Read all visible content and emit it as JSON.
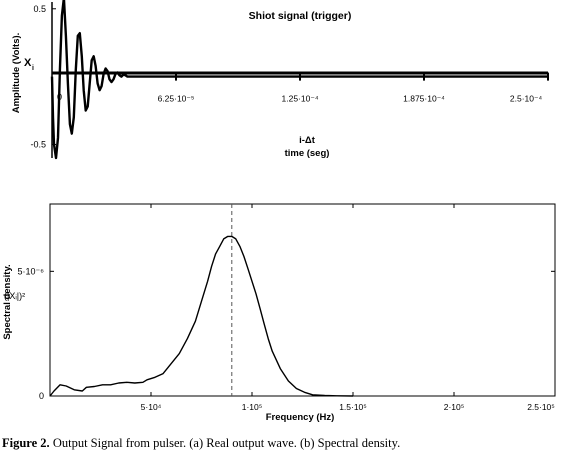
{
  "chart_data": [
    {
      "type": "line",
      "title": "Shiot signal (trigger)",
      "ylabel": "Amplitude (Volts).",
      "xlabel_top": "i-Δt",
      "xlabel": "time (seg)",
      "point_label": "X",
      "point_label_sub": "i",
      "origin_label": "0",
      "xlim": [
        0,
        0.00025
      ],
      "ylim": [
        -0.6,
        0.55
      ],
      "y_ticks": [
        {
          "value": 0.5,
          "label": "0.5"
        },
        {
          "value": -0.5,
          "label": "-0.5"
        }
      ],
      "x_ticks": [
        {
          "value": 6.25e-05,
          "label": "6.25·10⁻⁵"
        },
        {
          "value": 0.000125,
          "label": "1.25·10⁻⁴"
        },
        {
          "value": 0.0001875,
          "label": "1.875·10⁻⁴"
        },
        {
          "value": 0.00025,
          "label": "2.5·10⁻⁴"
        }
      ],
      "series": [
        {
          "x": [
            0,
            5e-07,
            1e-06,
            2e-06,
            3e-06,
            4e-06,
            5e-06,
            6e-06,
            7e-06,
            8e-06,
            9e-06,
            1e-05,
            1.1e-05,
            1.2e-05,
            1.3e-05,
            1.4e-05,
            1.5e-05,
            1.6e-05,
            1.7e-05,
            1.8e-05,
            1.9e-05,
            2e-05,
            2.1e-05,
            2.2e-05,
            2.3e-05,
            2.4e-05,
            2.5e-05,
            2.6e-05,
            2.7e-05,
            2.8e-05,
            2.9e-05,
            3e-05,
            3.1e-05,
            3.2e-05,
            3.3e-05,
            3.4e-05,
            3.5e-05,
            3.6e-05,
            3.7e-05,
            3.8e-05,
            4e-05,
            4.2e-05,
            4.4e-05,
            4.6e-05,
            5e-05,
            0.00025
          ],
          "y": [
            0,
            -0.3,
            -0.5,
            -0.6,
            -0.45,
            0.05,
            0.45,
            0.58,
            0.3,
            -0.05,
            -0.35,
            -0.42,
            -0.3,
            0.05,
            0.3,
            0.32,
            0.15,
            -0.1,
            -0.25,
            -0.22,
            -0.05,
            0.12,
            0.15,
            0.08,
            -0.05,
            -0.1,
            -0.07,
            0.02,
            0.06,
            0.04,
            -0.02,
            -0.04,
            -0.02,
            0.02,
            0.03,
            0.01,
            0,
            0.015,
            0.01,
            0,
            0,
            0,
            0,
            0,
            0,
            0
          ]
        }
      ]
    },
    {
      "type": "line",
      "ylabel": "Spectral density.",
      "ylabel_sub": "(|Xᵢ|)²",
      "xlabel": "Frequency (Hz)",
      "xlim": [
        0,
        250000
      ],
      "ylim": [
        0,
        7.7e-06
      ],
      "vline_x": 90000,
      "y_ticks": [
        {
          "value": 0,
          "label": "0"
        },
        {
          "value": 5e-06,
          "label": "5·10⁻⁶"
        }
      ],
      "x_ticks": [
        {
          "value": 50000,
          "label": "5·10⁴"
        },
        {
          "value": 100000,
          "label": "1·10⁵"
        },
        {
          "value": 150000,
          "label": "1.5·10⁵"
        },
        {
          "value": 200000,
          "label": "2·10⁵"
        },
        {
          "value": 250000,
          "label": "2.5·10⁵"
        }
      ],
      "series": [
        {
          "x": [
            0,
            2000,
            5000,
            8000,
            12000,
            16000,
            18000,
            22000,
            26000,
            30000,
            34000,
            38000,
            42000,
            46000,
            48000,
            52000,
            56000,
            60000,
            64000,
            68000,
            72000,
            75000,
            78000,
            80000,
            82000,
            84000,
            86000,
            88000,
            90000,
            92000,
            94000,
            96000,
            98000,
            100000,
            102000,
            104000,
            106000,
            108000,
            110000,
            114000,
            118000,
            122000,
            126000,
            130000,
            136000,
            142000,
            150000
          ],
          "y": [
            0,
            2e-07,
            4.5e-07,
            4e-07,
            2.5e-07,
            2e-07,
            3.5e-07,
            3.8e-07,
            4.5e-07,
            4.5e-07,
            5.2e-07,
            5.5e-07,
            5.2e-07,
            5.5e-07,
            6.5e-07,
            7.5e-07,
            9e-07,
            1.3e-06,
            1.7e-06,
            2.3e-06,
            3e-06,
            3.8e-06,
            4.6e-06,
            5.2e-06,
            5.7e-06,
            6e-06,
            6.3e-06,
            6.4e-06,
            6.4e-06,
            6.3e-06,
            6e-06,
            5.6e-06,
            5.1e-06,
            4.6e-06,
            4.1e-06,
            3.5e-06,
            2.9e-06,
            2.3e-06,
            1.8e-06,
            1.1e-06,
            6e-07,
            3e-07,
            1.5e-07,
            5e-08,
            2e-08,
            1e-08,
            0
          ]
        }
      ]
    }
  ],
  "caption": {
    "label": "Figure 2.",
    "text": " Output Signal from pulser. (a) Real output wave. (b) Spectral density."
  }
}
